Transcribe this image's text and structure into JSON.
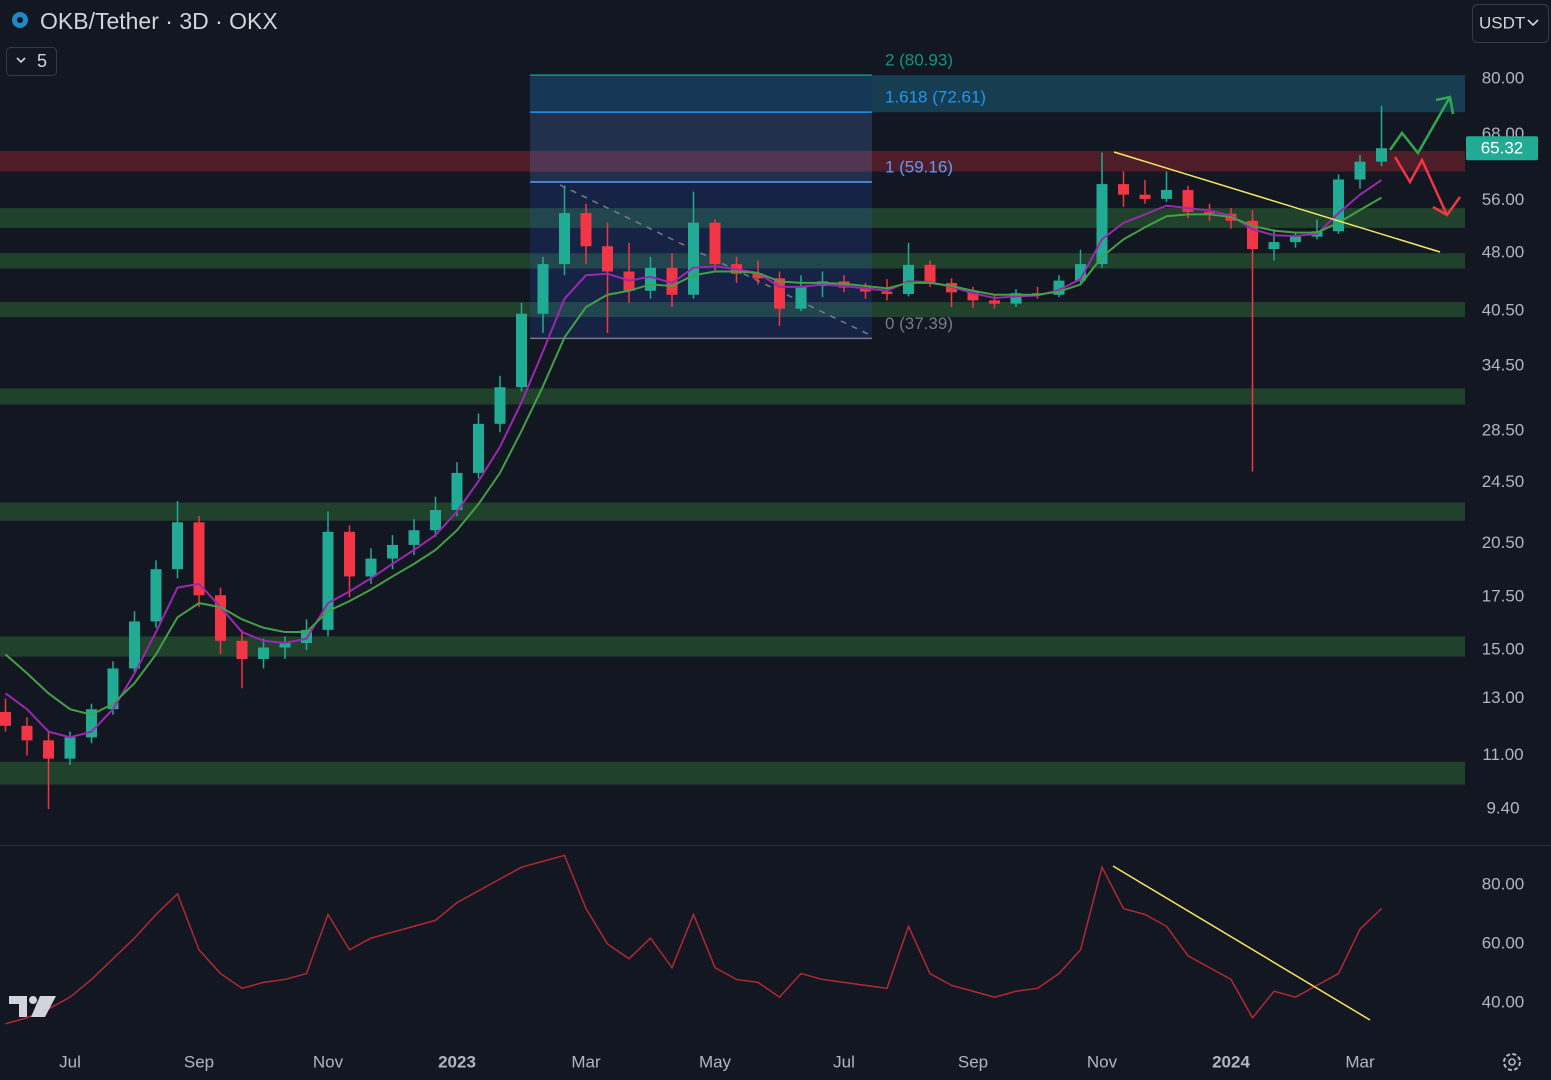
{
  "toolbar": {
    "hidden_indicators": 5,
    "currency": "USDT"
  },
  "chart_data": [
    {
      "type": "candlestick",
      "title": "OKB/Tether · 3D · OKX",
      "log_scale": true,
      "categories": [
        null,
        null,
        null,
        "Jul",
        null,
        null,
        null,
        null,
        null,
        "Sep",
        null,
        null,
        null,
        null,
        null,
        "Nov",
        null,
        null,
        null,
        null,
        null,
        "2023",
        null,
        null,
        null,
        null,
        null,
        "Mar",
        null,
        null,
        null,
        null,
        null,
        "May",
        null,
        null,
        null,
        null,
        null,
        "Jul",
        null,
        null,
        null,
        null,
        null,
        "Sep",
        null,
        null,
        null,
        null,
        null,
        "Nov",
        null,
        null,
        null,
        null,
        null,
        "2024",
        null,
        null,
        null,
        null,
        null,
        "Mar",
        null
      ],
      "open": [
        12.5,
        12.0,
        11.5,
        10.9,
        11.6,
        12.6,
        14.2,
        16.3,
        19.0,
        21.8,
        17.6,
        15.4,
        14.6,
        15.1,
        15.3,
        15.9,
        21.2,
        18.6,
        19.6,
        20.4,
        21.3,
        22.6,
        25.2,
        29.1,
        32.4,
        40.2,
        46.5,
        54.0,
        49.0,
        45.5,
        43.0,
        46.0,
        42.5,
        52.5,
        46.5,
        45.2,
        44.6,
        40.8,
        43.6,
        44.2,
        43.4,
        42.9,
        42.6,
        46.4,
        44.0,
        42.8,
        41.8,
        41.4,
        42.7,
        42.5,
        44.3,
        46.5,
        58.8,
        57.0,
        56.3,
        57.8,
        54.2,
        53.9,
        52.8,
        48.6,
        49.6,
        50.4,
        51.2,
        59.6,
        62.8
      ],
      "high": [
        13.0,
        12.3,
        11.8,
        11.8,
        12.8,
        14.5,
        16.8,
        19.5,
        23.2,
        22.2,
        18.0,
        15.9,
        15.5,
        15.6,
        16.4,
        22.5,
        21.6,
        20.2,
        21.0,
        22.0,
        23.5,
        26.0,
        30.0,
        33.5,
        41.5,
        47.5,
        58.5,
        55.5,
        52.5,
        49.5,
        47.5,
        48.0,
        57.5,
        53.0,
        47.5,
        47.0,
        45.5,
        45.0,
        45.5,
        45.0,
        44.0,
        44.5,
        49.5,
        47.0,
        44.6,
        43.5,
        42.6,
        43.2,
        43.5,
        45.0,
        48.5,
        64.5,
        61.0,
        59.5,
        61.0,
        58.5,
        55.5,
        54.8,
        54.5,
        51.5,
        51.0,
        53.0,
        60.5,
        64.0,
        74.0
      ],
      "low": [
        11.8,
        11.0,
        9.4,
        10.7,
        11.4,
        12.4,
        14.0,
        16.0,
        18.5,
        17.0,
        14.8,
        13.4,
        14.2,
        14.6,
        15.0,
        15.6,
        17.5,
        18.2,
        19.0,
        19.8,
        20.9,
        22.2,
        24.8,
        28.4,
        32.0,
        38.0,
        45.0,
        46.5,
        38.0,
        41.5,
        42.0,
        41.0,
        42.0,
        45.5,
        44.0,
        43.8,
        38.8,
        40.5,
        42.2,
        42.8,
        42.0,
        41.8,
        42.3,
        43.5,
        41.0,
        40.9,
        40.8,
        41.0,
        42.0,
        42.2,
        44.0,
        46.0,
        55.0,
        55.5,
        55.8,
        53.2,
        52.8,
        51.6,
        25.3,
        47.0,
        48.8,
        50.0,
        50.8,
        58.0,
        62.0
      ],
      "close": [
        12.0,
        11.5,
        10.9,
        11.6,
        12.6,
        14.2,
        16.3,
        19.0,
        21.8,
        17.6,
        15.4,
        14.6,
        15.1,
        15.3,
        15.9,
        21.2,
        18.6,
        19.6,
        20.4,
        21.3,
        22.6,
        25.2,
        29.1,
        32.4,
        40.2,
        46.5,
        54.0,
        49.0,
        45.5,
        43.0,
        46.0,
        42.5,
        52.5,
        46.5,
        45.2,
        44.6,
        40.8,
        43.6,
        44.2,
        43.4,
        42.9,
        42.6,
        46.4,
        44.0,
        42.8,
        41.8,
        41.4,
        42.7,
        42.5,
        44.3,
        46.5,
        58.8,
        57.0,
        56.3,
        57.8,
        54.2,
        53.9,
        52.8,
        48.6,
        49.6,
        50.4,
        51.2,
        59.6,
        62.8,
        65.32
      ],
      "up_color": "#22ab94",
      "down_color": "#f23645",
      "lines": [
        {
          "color": "#9c27b0",
          "values": [
            13.2,
            12.6,
            11.8,
            11.6,
            11.8,
            12.6,
            14.0,
            15.8,
            18.0,
            18.2,
            17.0,
            15.8,
            15.4,
            15.3,
            15.5,
            17.2,
            17.8,
            18.5,
            19.3,
            20.1,
            21.0,
            22.5,
            24.6,
            27.2,
            31.0,
            36.0,
            42.0,
            45.0,
            45.2,
            44.3,
            44.8,
            44.0,
            46.0,
            46.2,
            45.8,
            45.3,
            43.5,
            43.5,
            43.8,
            43.6,
            43.3,
            43.0,
            44.2,
            44.1,
            43.5,
            42.7,
            42.1,
            42.3,
            42.4,
            43.1,
            44.5,
            50.0,
            52.5,
            53.8,
            55.2,
            54.8,
            54.4,
            53.6,
            51.5,
            50.6,
            50.5,
            50.8,
            54.0,
            57.0,
            59.5
          ]
        },
        {
          "color": "#43a047",
          "values": [
            14.8,
            14.0,
            13.2,
            12.6,
            12.4,
            12.8,
            13.6,
            14.8,
            16.5,
            17.2,
            17.0,
            16.4,
            16.0,
            15.8,
            15.8,
            16.8,
            17.3,
            17.9,
            18.6,
            19.3,
            20.1,
            21.3,
            23.0,
            25.2,
            28.5,
            32.5,
            37.5,
            41.0,
            42.5,
            43.0,
            43.8,
            43.6,
            45.0,
            45.5,
            45.5,
            45.3,
            44.2,
            44.0,
            44.0,
            43.9,
            43.6,
            43.3,
            44.0,
            44.0,
            43.6,
            43.0,
            42.5,
            42.5,
            42.5,
            42.9,
            43.8,
            47.5,
            50.0,
            51.8,
            53.5,
            53.8,
            53.8,
            53.4,
            52.0,
            51.3,
            51.0,
            51.0,
            52.5,
            54.5,
            56.5
          ]
        }
      ],
      "zones": [
        {
          "range": [
            61.0,
            64.8
          ],
          "color": "rgba(178,40,51,0.38)"
        },
        {
          "range": [
            51.7,
            54.8
          ],
          "color": "rgba(56,142,60,0.35)"
        },
        {
          "range": [
            45.9,
            48.0
          ],
          "color": "rgba(56,142,60,0.35)"
        },
        {
          "range": [
            39.8,
            41.6
          ],
          "color": "rgba(56,142,60,0.35)"
        },
        {
          "range": [
            30.8,
            32.3
          ],
          "color": "rgba(56,142,60,0.35)"
        },
        {
          "range": [
            21.9,
            23.1
          ],
          "color": "rgba(56,142,60,0.35)"
        },
        {
          "range": [
            14.7,
            15.6
          ],
          "color": "rgba(56,142,60,0.35)"
        },
        {
          "range": [
            10.1,
            10.8
          ],
          "color": "rgba(56,142,60,0.35)"
        }
      ],
      "fib_levels": [
        {
          "value": 37.39,
          "label": "0 (37.39)",
          "color": "#787b86"
        },
        {
          "value": 59.16,
          "label": "1 (59.16)",
          "color": "#5b9cf6"
        },
        {
          "value": 72.61,
          "label": "1.618 (72.61)",
          "color": "#2196f3"
        },
        {
          "value": 80.93,
          "label": "2 (80.93)",
          "color": "#089981"
        }
      ],
      "fib_fills": [
        "rgba(41,98,255,0.16)",
        "rgba(91,156,246,0.2)",
        "rgba(33,150,243,0.25)"
      ],
      "extension_fill": "rgba(33,150,190,0.3)",
      "last_price": 65.32,
      "ylim": [
        8.46,
        100.9
      ],
      "yticks": [
        {
          "value": 80,
          "label": "80.00"
        },
        {
          "value": 68,
          "label": "68.00"
        },
        {
          "value": 56,
          "label": "56.00"
        },
        {
          "value": 48,
          "label": "48.00"
        },
        {
          "value": 40.5,
          "label": "40.50"
        },
        {
          "value": 34.5,
          "label": "34.50"
        },
        {
          "value": 28.5,
          "label": "28.50"
        },
        {
          "value": 24.5,
          "label": "24.50"
        },
        {
          "value": 20.5,
          "label": "20.50"
        },
        {
          "value": 17.5,
          "label": "17.50"
        },
        {
          "value": 15,
          "label": "15.00"
        },
        {
          "value": 13,
          "label": "13.00"
        },
        {
          "value": 11,
          "label": "11.00"
        },
        {
          "value": 9.4,
          "label": "9.40"
        }
      ]
    },
    {
      "type": "line",
      "color": "#b22833",
      "values": [
        33,
        35,
        38,
        42,
        48,
        55,
        62,
        70,
        77,
        58,
        50,
        45,
        47,
        48,
        50,
        70,
        58,
        62,
        64,
        66,
        68,
        74,
        78,
        82,
        86,
        88,
        90,
        72,
        60,
        55,
        62,
        52,
        70,
        52,
        48,
        47,
        42,
        50,
        48,
        47,
        46,
        45,
        66,
        50,
        46,
        44,
        42,
        44,
        45,
        50,
        58,
        86,
        72,
        70,
        66,
        56,
        52,
        48,
        35,
        44,
        42,
        46,
        50,
        65,
        72
      ],
      "ylim": [
        27.5,
        92.5
      ],
      "yticks": [
        {
          "value": 80,
          "label": "80.00"
        },
        {
          "value": 60,
          "label": "60.00"
        },
        {
          "value": 40,
          "label": "40.00"
        }
      ]
    }
  ]
}
